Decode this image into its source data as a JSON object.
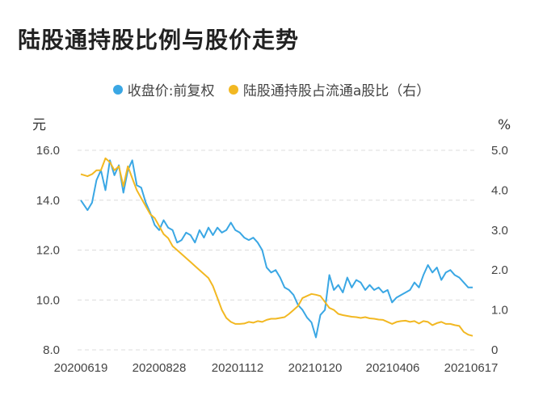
{
  "title": "陆股通持股比例与股价走势",
  "legend": [
    {
      "label": "收盘价:前复权",
      "color": "#3aa7e4"
    },
    {
      "label": "陆股通持股占流通a股比（右）",
      "color": "#f2b822"
    }
  ],
  "chart_data": {
    "type": "line",
    "left_axis": {
      "unit": "元",
      "ticks": [
        "16.0",
        "14.0",
        "12.0",
        "10.0",
        "8.0"
      ],
      "range": [
        8,
        16
      ]
    },
    "right_axis": {
      "unit": "%",
      "ticks": [
        "5.0",
        "4.0",
        "3.0",
        "2.0",
        "1.0",
        "0"
      ],
      "range": [
        0,
        5
      ]
    },
    "x_ticks": [
      "20200619",
      "20200828",
      "20201112",
      "20210120",
      "20210406",
      "20210617"
    ],
    "grid": "horizontal dashed",
    "legend_position": "top",
    "series": [
      {
        "name": "收盘价:前复权",
        "axis": "left",
        "color": "#3aa7e4",
        "values": [
          [
            0,
            14.0
          ],
          [
            3,
            13.6
          ],
          [
            5,
            13.9
          ],
          [
            7,
            14.8
          ],
          [
            9,
            15.2
          ],
          [
            11,
            14.4
          ],
          [
            13,
            15.6
          ],
          [
            15,
            15.0
          ],
          [
            17,
            15.4
          ],
          [
            19,
            14.3
          ],
          [
            21,
            15.2
          ],
          [
            23,
            15.6
          ],
          [
            25,
            14.6
          ],
          [
            27,
            14.5
          ],
          [
            29,
            13.9
          ],
          [
            31,
            13.5
          ],
          [
            33,
            13.0
          ],
          [
            35,
            12.8
          ],
          [
            37,
            13.2
          ],
          [
            39,
            12.9
          ],
          [
            41,
            12.8
          ],
          [
            43,
            12.3
          ],
          [
            45,
            12.4
          ],
          [
            47,
            12.7
          ],
          [
            49,
            12.6
          ],
          [
            51,
            12.3
          ],
          [
            53,
            12.8
          ],
          [
            55,
            12.5
          ],
          [
            57,
            12.9
          ],
          [
            59,
            12.6
          ],
          [
            61,
            12.9
          ],
          [
            63,
            12.7
          ],
          [
            65,
            12.8
          ],
          [
            67,
            13.1
          ],
          [
            69,
            12.8
          ],
          [
            71,
            12.7
          ],
          [
            73,
            12.5
          ],
          [
            75,
            12.4
          ],
          [
            77,
            12.5
          ],
          [
            79,
            12.3
          ],
          [
            81,
            12.0
          ],
          [
            83,
            11.3
          ],
          [
            85,
            11.1
          ],
          [
            87,
            11.2
          ],
          [
            89,
            10.9
          ],
          [
            91,
            10.5
          ],
          [
            93,
            10.4
          ],
          [
            95,
            10.2
          ],
          [
            97,
            9.8
          ],
          [
            99,
            9.6
          ],
          [
            101,
            9.3
          ],
          [
            103,
            9.1
          ],
          [
            105,
            8.5
          ],
          [
            107,
            9.4
          ],
          [
            109,
            9.6
          ],
          [
            111,
            11.0
          ],
          [
            113,
            10.4
          ],
          [
            115,
            10.6
          ],
          [
            117,
            10.3
          ],
          [
            119,
            10.9
          ],
          [
            121,
            10.5
          ],
          [
            123,
            10.8
          ],
          [
            125,
            10.7
          ],
          [
            127,
            10.4
          ],
          [
            129,
            10.6
          ],
          [
            131,
            10.4
          ],
          [
            133,
            10.5
          ],
          [
            135,
            10.3
          ],
          [
            137,
            10.4
          ],
          [
            139,
            9.9
          ],
          [
            141,
            10.1
          ],
          [
            143,
            10.2
          ],
          [
            145,
            10.3
          ],
          [
            147,
            10.4
          ],
          [
            149,
            10.7
          ],
          [
            151,
            10.5
          ],
          [
            153,
            11.0
          ],
          [
            155,
            11.4
          ],
          [
            157,
            11.1
          ],
          [
            159,
            11.3
          ],
          [
            161,
            10.8
          ],
          [
            163,
            11.1
          ],
          [
            165,
            11.2
          ],
          [
            167,
            11.0
          ],
          [
            169,
            10.9
          ],
          [
            171,
            10.7
          ],
          [
            173,
            10.5
          ],
          [
            175,
            10.5
          ]
        ]
      },
      {
        "name": "陆股通持股占流通a股比（右）",
        "axis": "right",
        "color": "#f2b822",
        "values": [
          [
            0,
            4.4
          ],
          [
            3,
            4.35
          ],
          [
            5,
            4.4
          ],
          [
            7,
            4.5
          ],
          [
            9,
            4.5
          ],
          [
            11,
            4.8
          ],
          [
            13,
            4.7
          ],
          [
            15,
            4.5
          ],
          [
            17,
            4.6
          ],
          [
            19,
            4.1
          ],
          [
            21,
            4.6
          ],
          [
            23,
            4.3
          ],
          [
            25,
            4.0
          ],
          [
            27,
            3.8
          ],
          [
            29,
            3.6
          ],
          [
            31,
            3.4
          ],
          [
            33,
            3.3
          ],
          [
            35,
            3.1
          ],
          [
            37,
            2.9
          ],
          [
            39,
            2.8
          ],
          [
            41,
            2.6
          ],
          [
            43,
            2.5
          ],
          [
            45,
            2.4
          ],
          [
            47,
            2.3
          ],
          [
            49,
            2.2
          ],
          [
            51,
            2.1
          ],
          [
            53,
            2.0
          ],
          [
            55,
            1.9
          ],
          [
            57,
            1.8
          ],
          [
            59,
            1.6
          ],
          [
            61,
            1.3
          ],
          [
            63,
            1.0
          ],
          [
            65,
            0.8
          ],
          [
            67,
            0.7
          ],
          [
            69,
            0.65
          ],
          [
            71,
            0.65
          ],
          [
            73,
            0.66
          ],
          [
            75,
            0.7
          ],
          [
            77,
            0.68
          ],
          [
            79,
            0.72
          ],
          [
            81,
            0.7
          ],
          [
            83,
            0.75
          ],
          [
            85,
            0.78
          ],
          [
            87,
            0.78
          ],
          [
            89,
            0.8
          ],
          [
            91,
            0.82
          ],
          [
            93,
            0.9
          ],
          [
            95,
            1.0
          ],
          [
            97,
            1.1
          ],
          [
            99,
            1.3
          ],
          [
            101,
            1.35
          ],
          [
            103,
            1.4
          ],
          [
            105,
            1.38
          ],
          [
            107,
            1.35
          ],
          [
            109,
            1.2
          ],
          [
            111,
            1.05
          ],
          [
            113,
            1.0
          ],
          [
            115,
            0.9
          ],
          [
            117,
            0.87
          ],
          [
            119,
            0.85
          ],
          [
            121,
            0.83
          ],
          [
            123,
            0.82
          ],
          [
            125,
            0.8
          ],
          [
            127,
            0.82
          ],
          [
            129,
            0.79
          ],
          [
            131,
            0.78
          ],
          [
            133,
            0.76
          ],
          [
            135,
            0.75
          ],
          [
            137,
            0.7
          ],
          [
            139,
            0.65
          ],
          [
            141,
            0.7
          ],
          [
            143,
            0.72
          ],
          [
            145,
            0.73
          ],
          [
            147,
            0.7
          ],
          [
            149,
            0.72
          ],
          [
            151,
            0.66
          ],
          [
            153,
            0.72
          ],
          [
            155,
            0.7
          ],
          [
            157,
            0.62
          ],
          [
            159,
            0.67
          ],
          [
            161,
            0.7
          ],
          [
            163,
            0.65
          ],
          [
            165,
            0.65
          ],
          [
            167,
            0.62
          ],
          [
            169,
            0.6
          ],
          [
            171,
            0.45
          ],
          [
            173,
            0.38
          ],
          [
            175,
            0.35
          ]
        ]
      }
    ]
  }
}
